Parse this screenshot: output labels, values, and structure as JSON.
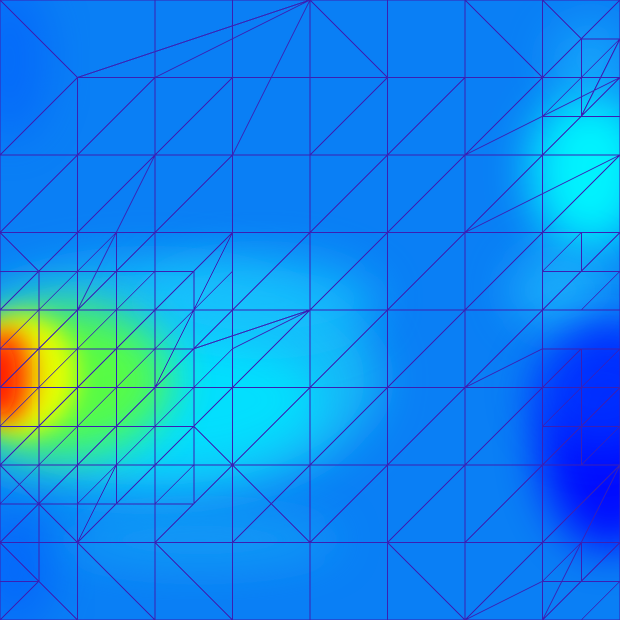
{
  "view": {
    "kind": "finite-element-mesh-field-plot",
    "colormap": "jet",
    "field_ramp": [
      "#0000ff",
      "#0080ff",
      "#00ffff",
      "#80ff00",
      "#ffff00",
      "#ff8000",
      "#ff0000"
    ],
    "background_color": "#0a7ff5",
    "mesh_line_color": "#3a1fb4"
  }
}
